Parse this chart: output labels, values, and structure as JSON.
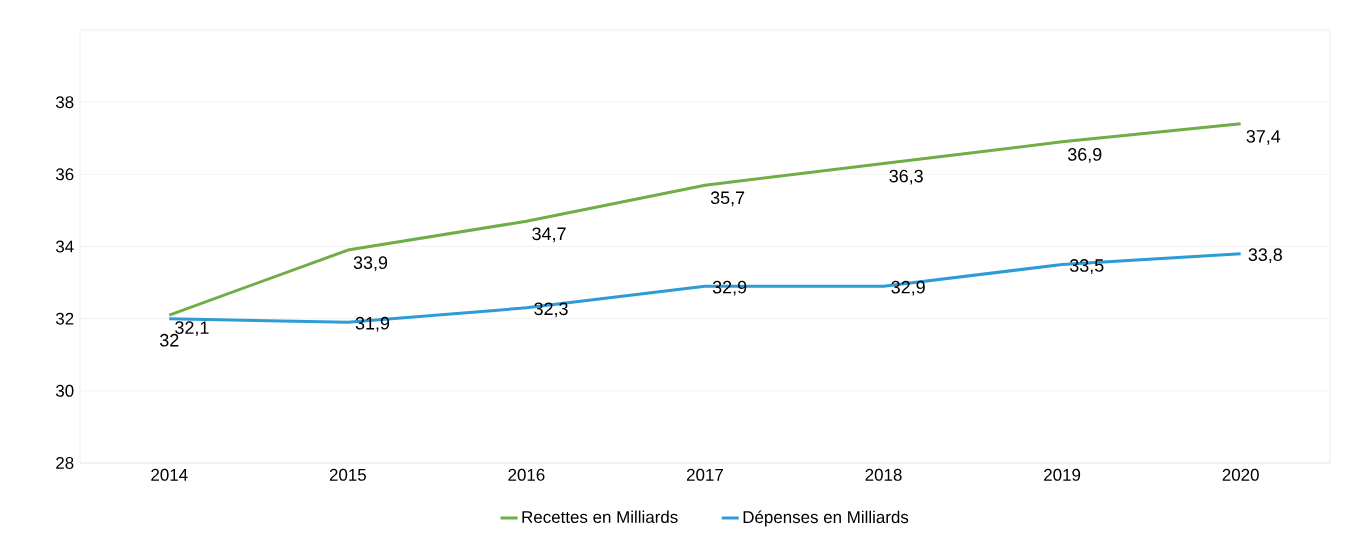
{
  "chart_data": {
    "type": "line",
    "categories": [
      "2014",
      "2015",
      "2016",
      "2017",
      "2018",
      "2019",
      "2020"
    ],
    "series": [
      {
        "name": "Recettes en Milliards",
        "color": "#70ad47",
        "values": [
          32.1,
          33.9,
          34.7,
          35.7,
          36.3,
          36.9,
          37.4
        ],
        "value_labels": [
          "32,1",
          "33,9",
          "34,7",
          "35,7",
          "36,3",
          "36,9",
          "37,4"
        ]
      },
      {
        "name": "Dépenses en Milliards",
        "color": "#2e9bd6",
        "values": [
          32,
          31.9,
          32.3,
          32.9,
          32.9,
          33.5,
          33.8
        ],
        "value_labels": [
          "32",
          "31,9",
          "32,3",
          "32,9",
          "32,9",
          "33,5",
          "33,8"
        ]
      }
    ],
    "ylim": [
      28,
      40
    ],
    "yticks": [
      28,
      30,
      32,
      34,
      36,
      38
    ],
    "grid": "y",
    "legend": "bottom",
    "marker": "none",
    "line_style": "solid"
  }
}
